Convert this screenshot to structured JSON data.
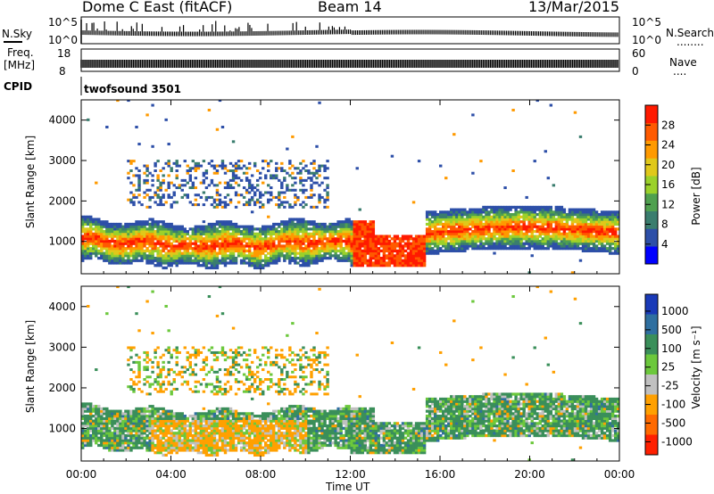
{
  "header": {
    "station": "Dome C East (fitACF)",
    "beam": "Beam 14",
    "date": "13/Mar/2015"
  },
  "panels": {
    "nsky": {
      "label": "N.Sky",
      "tick_hi": "10^5",
      "tick_lo": "10^0",
      "right_label": "N.Search",
      "right_dots": "........"
    },
    "freq": {
      "label_a": "Freq.",
      "label_b": "[MHz]",
      "tick_hi": "18",
      "tick_lo": "8",
      "right_hi": "60",
      "right_lo": "0",
      "right_label": "Nave",
      "right_dots": "...."
    },
    "cpid": {
      "label": "CPID",
      "value": "twofsound 3501"
    }
  },
  "chart_data": [
    {
      "type": "heatmap",
      "title": "",
      "ylabel": "Slant Range [km]",
      "xlabel": "Time UT",
      "x_ticks": [
        "00:00",
        "04:00",
        "08:00",
        "12:00",
        "16:00",
        "20:00",
        "00:00"
      ],
      "y_ticks": [
        "1000",
        "2000",
        "3000",
        "4000"
      ],
      "ylim": [
        200,
        4500
      ],
      "colorbar": {
        "label": "Power [dB]",
        "ticks": [
          "4",
          "8",
          "12",
          "16",
          "20",
          "24",
          "28"
        ],
        "range": [
          0,
          32
        ],
        "colors": [
          "#0000ff",
          "#2d4fa8",
          "#3a7d6e",
          "#4fa04f",
          "#9bd12a",
          "#e0c81a",
          "#ff9a00",
          "#ff5a00",
          "#ff1a00"
        ]
      },
      "bands": [
        {
          "t0": 0.0,
          "t1": 12.0,
          "r0": 500,
          "r1": 1600,
          "level": "high"
        },
        {
          "t0": 12.0,
          "t1": 15.3,
          "r0": 400,
          "r1": 1100,
          "level": "high"
        },
        {
          "t0": 15.3,
          "t1": 24.0,
          "r0": 600,
          "r1": 1700,
          "level": "high"
        },
        {
          "t0": 2.0,
          "t1": 11.0,
          "r0": 1800,
          "r1": 3000,
          "level": "low"
        }
      ]
    },
    {
      "type": "heatmap",
      "title": "",
      "ylabel": "Slant Range [km]",
      "xlabel": "Time UT",
      "x_ticks": [
        "00:00",
        "04:00",
        "08:00",
        "12:00",
        "16:00",
        "20:00",
        "00:00"
      ],
      "y_ticks": [
        "1000",
        "2000",
        "3000",
        "4000"
      ],
      "ylim": [
        200,
        4500
      ],
      "colorbar": {
        "label": "Velocity [m s⁻¹]",
        "ticks": [
          "1000",
          "500",
          "100",
          "25",
          "-25",
          "-100",
          "-500",
          "-1000"
        ],
        "colors": [
          "#1a3ab8",
          "#2f6fa0",
          "#3a8f5a",
          "#6cc83c",
          "#c0c0c0",
          "#ffa000",
          "#ff6a00",
          "#ff2000"
        ]
      }
    }
  ]
}
